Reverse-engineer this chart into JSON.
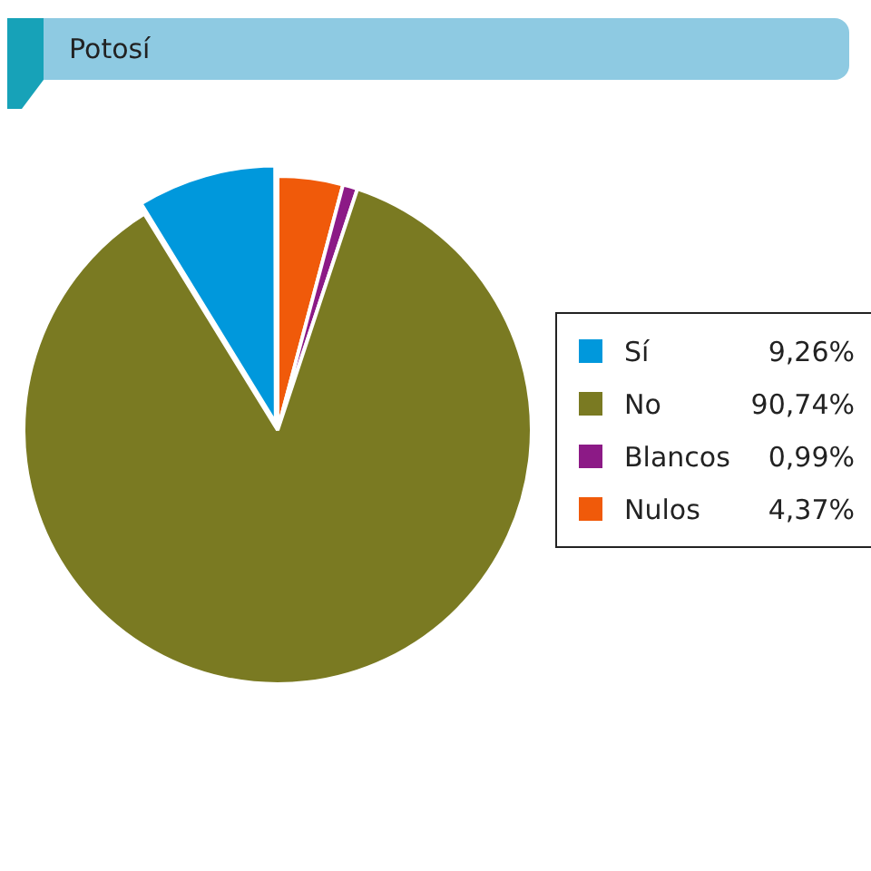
{
  "chart_data": {
    "type": "pie",
    "title": "Potosí",
    "categories": [
      "Sí",
      "No",
      "Blancos",
      "Nulos"
    ],
    "values": [
      9.26,
      90.74,
      0.99,
      4.37
    ],
    "value_labels": [
      "9,26%",
      "90,74%",
      "0,99%",
      "4,37%"
    ],
    "colors": [
      "#0098dc",
      "#7a7a22",
      "#8c1a86",
      "#f05a0a"
    ],
    "legend": "right"
  }
}
